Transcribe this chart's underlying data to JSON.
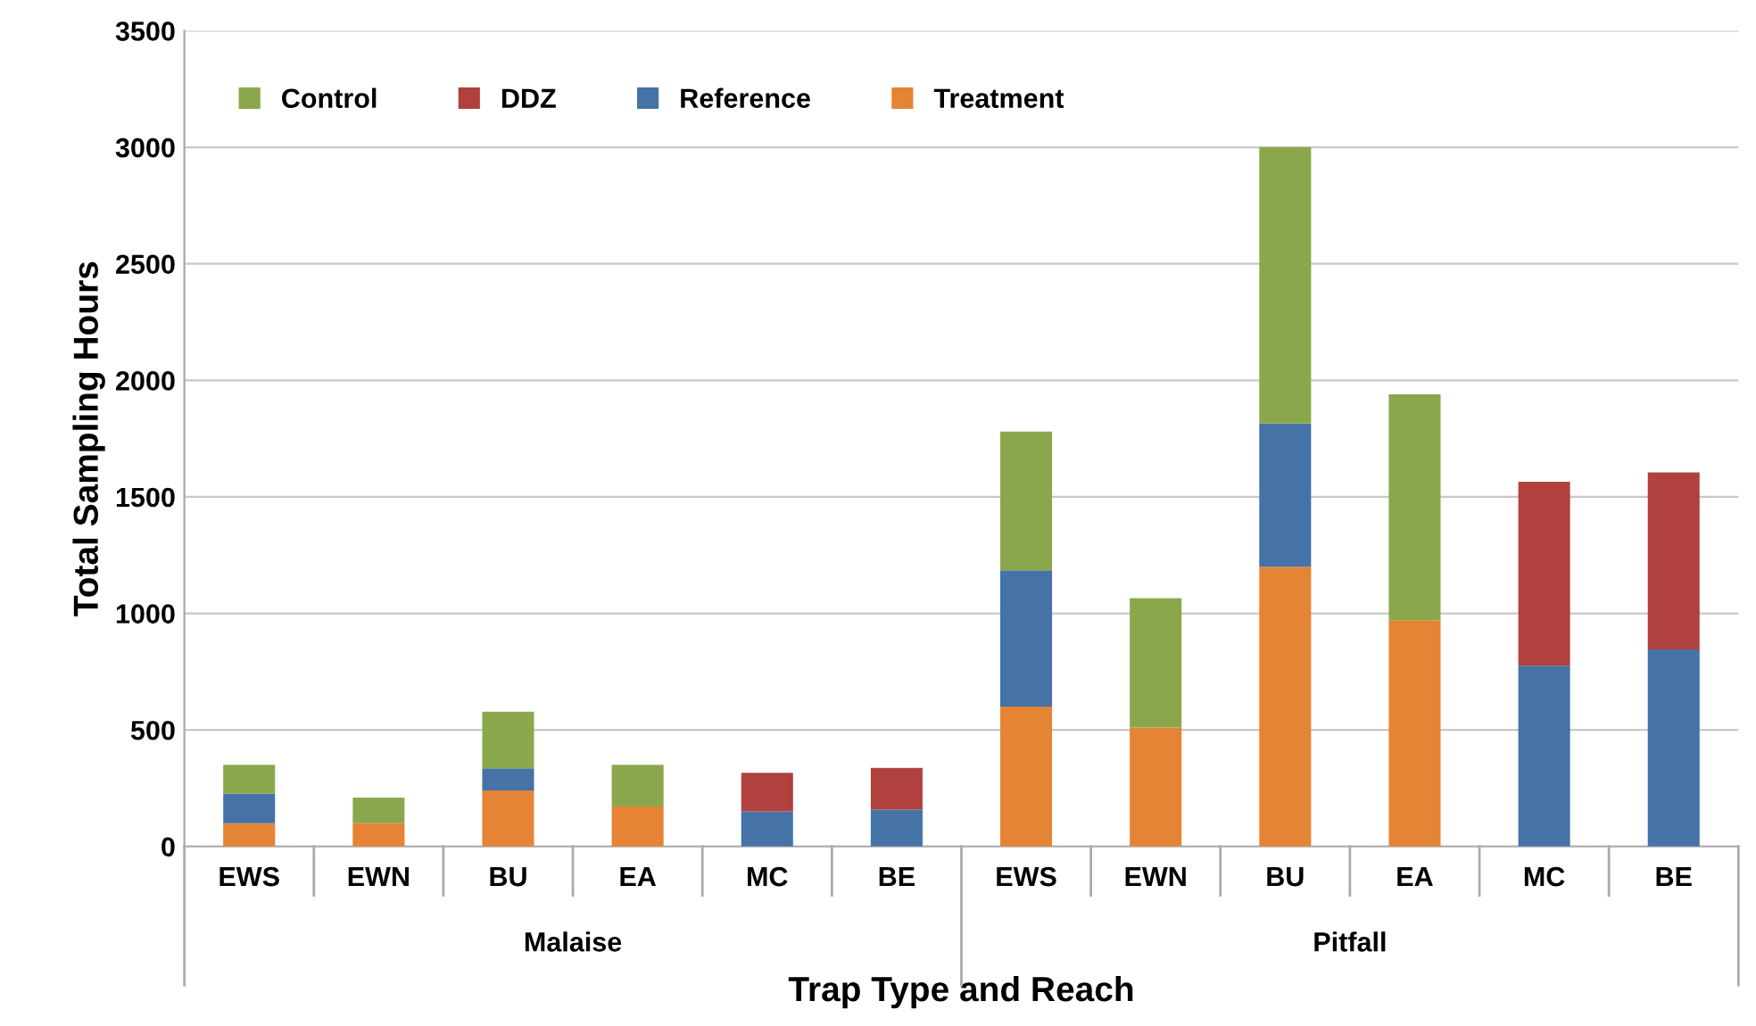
{
  "chart_data": {
    "type": "bar",
    "stacked": true,
    "xlabel": "Trap Type and Reach",
    "ylabel": "Total Sampling Hours",
    "categories": [
      "EWS",
      "EWN",
      "BU",
      "EA",
      "MC",
      "BE",
      "EWS",
      "EWN",
      "BU",
      "EA",
      "MC",
      "BE"
    ],
    "series": [
      {
        "name": "Treatment",
        "color": "#e48434",
        "values": [
          100,
          100,
          240,
          171,
          0,
          0,
          600,
          510,
          1200,
          970,
          0,
          0
        ]
      },
      {
        "name": "Reference",
        "color": "#4573a7",
        "values": [
          127,
          0,
          95,
          0,
          150,
          158,
          585,
          0,
          615,
          0,
          775,
          845
        ]
      },
      {
        "name": "DDZ",
        "color": "#b0413e",
        "values": [
          0,
          0,
          0,
          0,
          166,
          179,
          0,
          0,
          0,
          0,
          790,
          760
        ]
      },
      {
        "name": "Control",
        "color": "#8aa84b",
        "values": [
          123,
          110,
          243,
          179,
          0,
          0,
          595,
          555,
          1185,
          970,
          0,
          0
        ]
      }
    ],
    "annotations": [
      "Malaise",
      "Pitfall"
    ],
    "ylim": [
      0,
      3500
    ],
    "yticks": [
      0,
      500,
      1000,
      1500,
      2000,
      2500,
      3000,
      3500
    ],
    "grid": "y",
    "legend": "top left"
  }
}
